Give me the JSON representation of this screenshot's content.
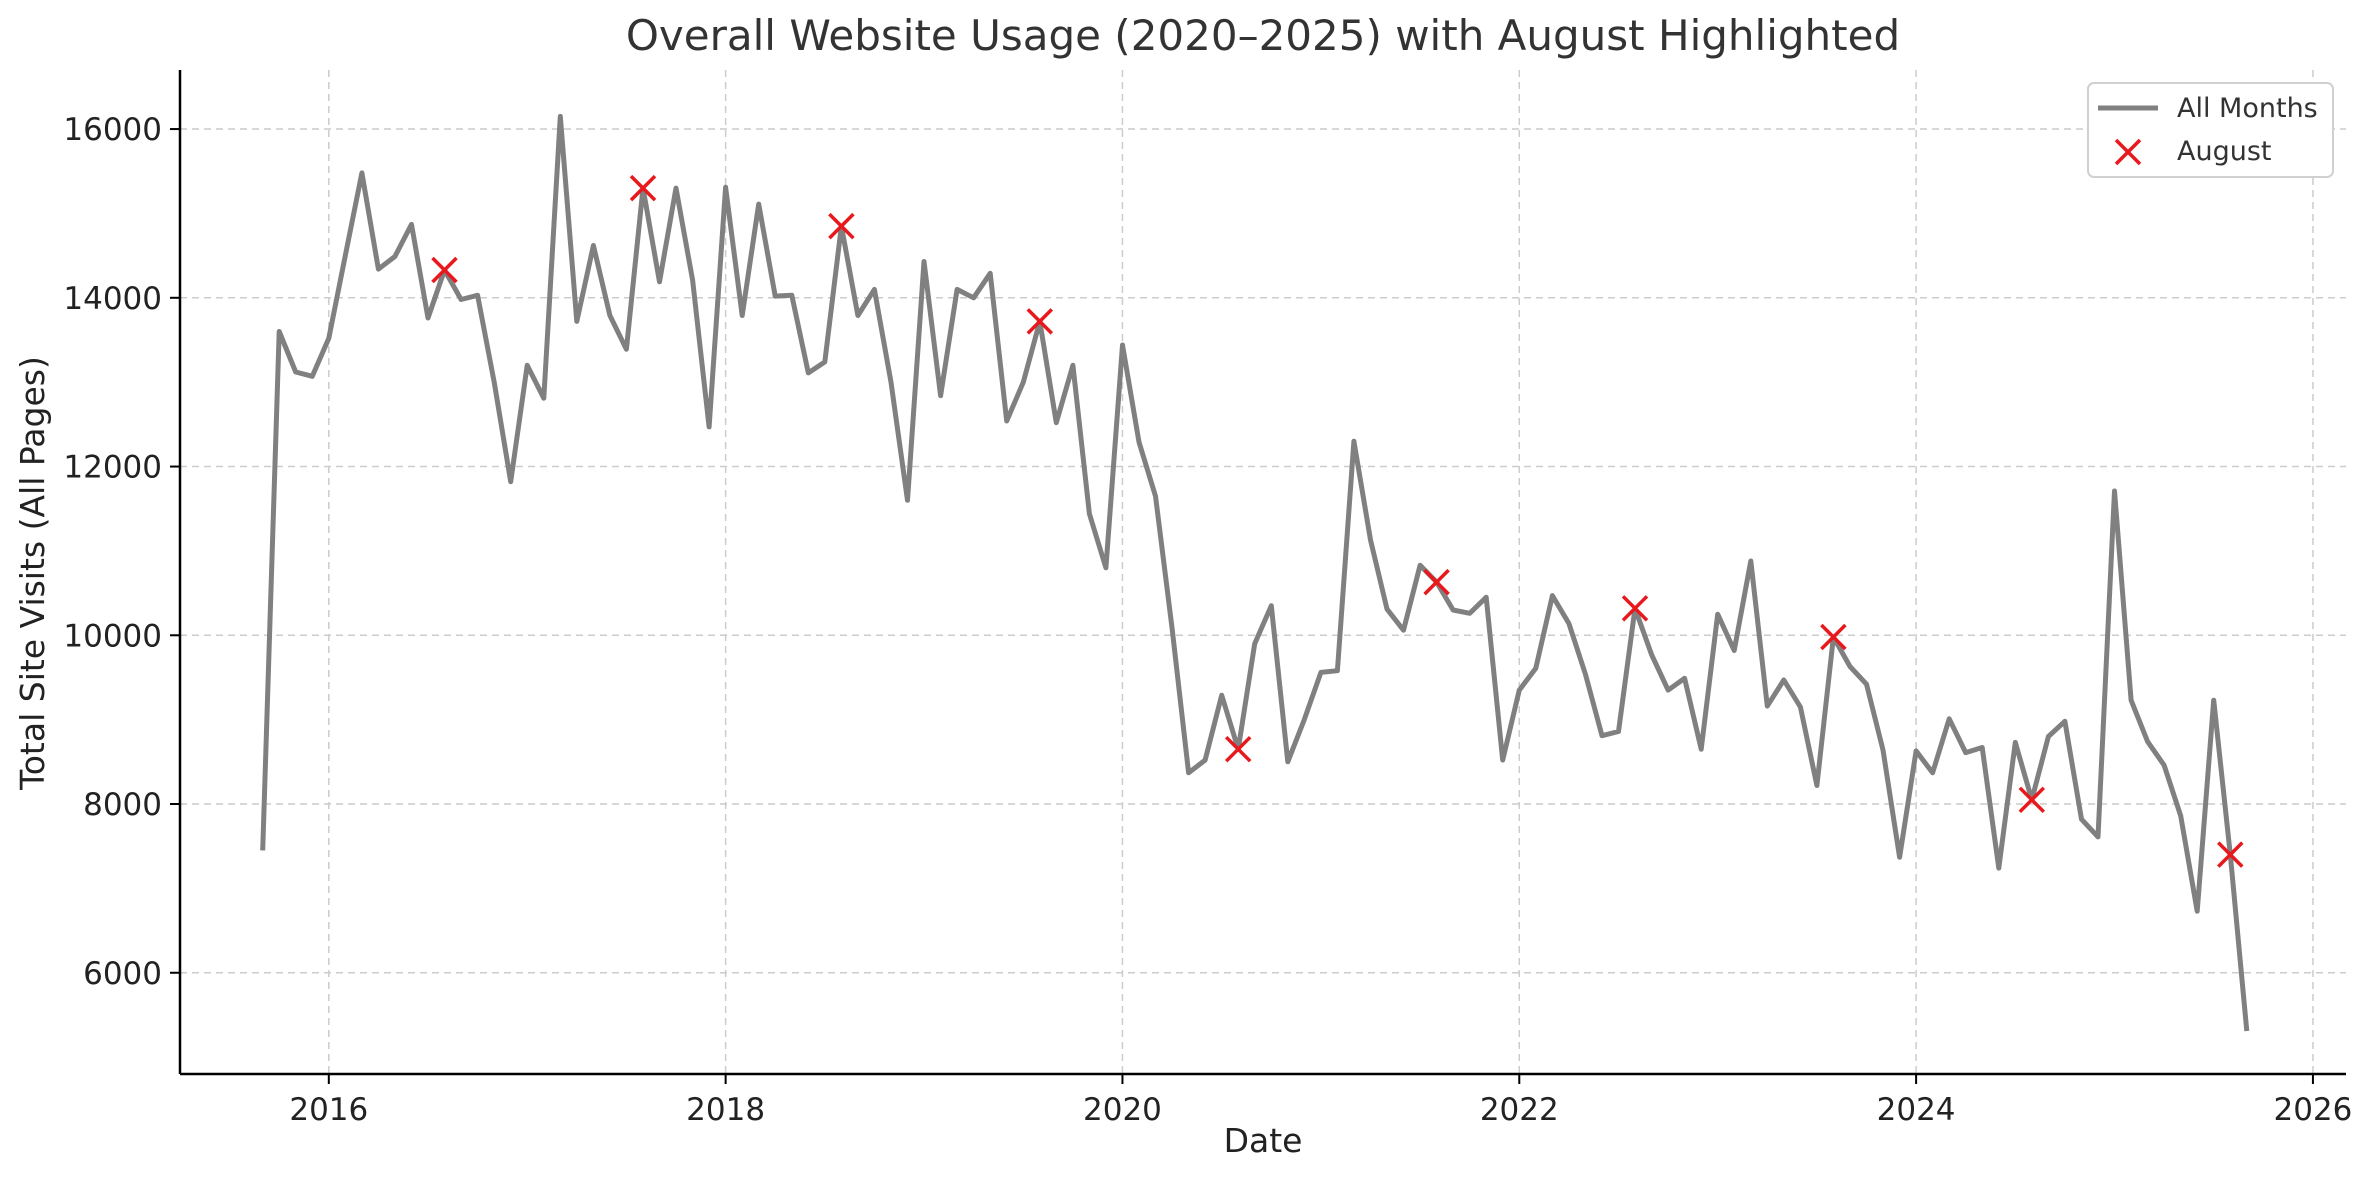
{
  "chart_data": {
    "type": "line",
    "title": "Overall Website Usage (2020–2025) with August Highlighted",
    "xlabel": "Date",
    "ylabel": "Total Site Visits (All Pages)",
    "xlim": [
      "2015-04",
      "2026-03"
    ],
    "ylim": [
      4800,
      16700
    ],
    "x_ticks": [
      "2016",
      "2018",
      "2020",
      "2022",
      "2024",
      "2026"
    ],
    "y_ticks": [
      6000,
      8000,
      10000,
      12000,
      14000,
      16000
    ],
    "grid": true,
    "legend_position": "top-right",
    "colors": {
      "line": "#808080",
      "marker": "#e8191c"
    },
    "series": [
      {
        "name": "All Months",
        "style": "line",
        "x": [
          "2015-09",
          "2015-10",
          "2015-11",
          "2015-12",
          "2016-01",
          "2016-02",
          "2016-03",
          "2016-04",
          "2016-05",
          "2016-06",
          "2016-07",
          "2016-08",
          "2016-09",
          "2016-10",
          "2016-11",
          "2016-12",
          "2017-01",
          "2017-02",
          "2017-03",
          "2017-04",
          "2017-05",
          "2017-06",
          "2017-07",
          "2017-08",
          "2017-09",
          "2017-10",
          "2017-11",
          "2017-12",
          "2018-01",
          "2018-02",
          "2018-03",
          "2018-04",
          "2018-05",
          "2018-06",
          "2018-07",
          "2018-08",
          "2018-09",
          "2018-10",
          "2018-11",
          "2018-12",
          "2019-01",
          "2019-02",
          "2019-03",
          "2019-04",
          "2019-05",
          "2019-06",
          "2019-07",
          "2019-08",
          "2019-09",
          "2019-10",
          "2019-11",
          "2019-12",
          "2020-01",
          "2020-02",
          "2020-03",
          "2020-04",
          "2020-05",
          "2020-06",
          "2020-07",
          "2020-08",
          "2020-09",
          "2020-10",
          "2020-11",
          "2020-12",
          "2021-01",
          "2021-02",
          "2021-03",
          "2021-04",
          "2021-05",
          "2021-06",
          "2021-07",
          "2021-08",
          "2021-09",
          "2021-10",
          "2021-11",
          "2021-12",
          "2022-01",
          "2022-02",
          "2022-03",
          "2022-04",
          "2022-05",
          "2022-06",
          "2022-07",
          "2022-08",
          "2022-09",
          "2022-10",
          "2022-11",
          "2022-12",
          "2023-01",
          "2023-02",
          "2023-03",
          "2023-04",
          "2023-05",
          "2023-06",
          "2023-07",
          "2023-08",
          "2023-09",
          "2023-10",
          "2023-11",
          "2023-12",
          "2024-01",
          "2024-02",
          "2024-03",
          "2024-04",
          "2024-05",
          "2024-06",
          "2024-07",
          "2024-08",
          "2024-09",
          "2024-10",
          "2024-11",
          "2024-12",
          "2025-01",
          "2025-02",
          "2025-03",
          "2025-04",
          "2025-05",
          "2025-06",
          "2025-07",
          "2025-08",
          "2025-09"
        ],
        "values": [
          7450,
          13600,
          13120,
          13070,
          13520,
          14500,
          15480,
          14340,
          14490,
          14870,
          13760,
          14330,
          13980,
          14030,
          13000,
          11820,
          13200,
          12810,
          16150,
          13720,
          14620,
          13790,
          13390,
          15300,
          14190,
          15300,
          14210,
          12470,
          15310,
          13790,
          15110,
          14020,
          14030,
          13110,
          13240,
          14850,
          13790,
          14100,
          13000,
          11600,
          14430,
          12840,
          14100,
          14000,
          14290,
          12540,
          13000,
          13720,
          12520,
          13200,
          11440,
          10800,
          13440,
          12290,
          11650,
          10080,
          8370,
          8520,
          9290,
          8650,
          9900,
          10350,
          8500,
          9000,
          9560,
          9580,
          12300,
          11130,
          10310,
          10060,
          10830,
          10630,
          10300,
          10260,
          10450,
          8520,
          9350,
          9610,
          10470,
          10140,
          9540,
          8810,
          8860,
          10320,
          9770,
          9350,
          9490,
          8650,
          10250,
          9820,
          10880,
          9160,
          9470,
          9150,
          8220,
          9980,
          9630,
          9420,
          8640,
          7370,
          8630,
          8370,
          9010,
          8610,
          8670,
          7240,
          8730,
          8050,
          8800,
          8980,
          7820,
          7610,
          11710,
          9230,
          8740,
          8460,
          7860,
          6730,
          9230,
          7400,
          5310
        ]
      },
      {
        "name": "August",
        "style": "marker-x",
        "x": [
          "2016-08",
          "2017-08",
          "2018-08",
          "2019-08",
          "2020-08",
          "2021-08",
          "2022-08",
          "2023-08",
          "2024-08",
          "2025-08"
        ],
        "values": [
          14330,
          15300,
          14850,
          13720,
          8650,
          10630,
          10320,
          9980,
          8050,
          7400
        ]
      }
    ]
  }
}
